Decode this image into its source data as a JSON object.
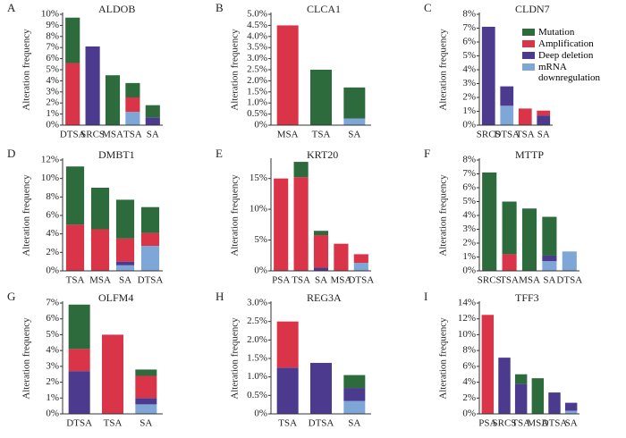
{
  "legend": {
    "names": [
      "Mutation",
      "Amplification",
      "Deep deletion",
      "mRNA downregulation"
    ],
    "colors": [
      "#2e6b3c",
      "#d93448",
      "#4b3a8e",
      "#7ea7d8"
    ]
  },
  "chart_data": [
    {
      "type": "bar",
      "label": "A",
      "title": "ALDOB",
      "y_label": "Alteration frequency",
      "categories": [
        "DTSA",
        "SRCS",
        "MSA",
        "TSA",
        "SA"
      ],
      "series": [
        {
          "values": [
            4.1,
            0,
            4.5,
            1.3,
            1.1
          ]
        },
        {
          "values": [
            5.6,
            0,
            0,
            1.3,
            0
          ]
        },
        {
          "values": [
            0,
            7.1,
            0,
            0,
            0.7
          ]
        },
        {
          "values": [
            0,
            0,
            0,
            1.2,
            0
          ]
        }
      ],
      "ylim": [
        0,
        10
      ],
      "yticks": [
        {
          "value": 0,
          "label": "0%"
        },
        {
          "value": 1,
          "label": "1%"
        },
        {
          "value": 2,
          "label": "2%"
        },
        {
          "value": 3,
          "label": "3%"
        },
        {
          "value": 4,
          "label": "4%"
        },
        {
          "value": 5,
          "label": "5%"
        },
        {
          "value": 6,
          "label": "6%"
        },
        {
          "value": 7,
          "label": "7%"
        },
        {
          "value": 8,
          "label": "8%"
        },
        {
          "value": 9,
          "label": "9%"
        },
        {
          "value": 10,
          "label": "10%"
        }
      ]
    },
    {
      "type": "bar",
      "label": "B",
      "title": "CLCA1",
      "y_label": "Alteration frequency",
      "categories": [
        "MSA",
        "TSA",
        "SA"
      ],
      "series": [
        {
          "values": [
            0,
            2.5,
            1.4
          ]
        },
        {
          "values": [
            4.5,
            0,
            0
          ]
        },
        {
          "values": [
            0,
            0,
            0
          ]
        },
        {
          "values": [
            0,
            0,
            0.3
          ]
        }
      ],
      "ylim": [
        0,
        5
      ],
      "yticks": [
        {
          "value": 0,
          "label": "0%"
        },
        {
          "value": 0.5,
          "label": "0.5%"
        },
        {
          "value": 1,
          "label": "1.0%"
        },
        {
          "value": 1.5,
          "label": "1.5%"
        },
        {
          "value": 2,
          "label": "2.0%"
        },
        {
          "value": 2.5,
          "label": "2.5%"
        },
        {
          "value": 3,
          "label": "3.0%"
        },
        {
          "value": 3.5,
          "label": "3.5%"
        },
        {
          "value": 4,
          "label": "4.0%"
        },
        {
          "value": 4.5,
          "label": "4.5%"
        },
        {
          "value": 5,
          "label": "5.0%"
        }
      ]
    },
    {
      "type": "bar",
      "label": "C",
      "title": "CLDN7",
      "y_label": "Alteration frequency",
      "categories": [
        "SRCS",
        "DTSA",
        "TSA",
        "SA"
      ],
      "series": [
        {
          "values": [
            0,
            0,
            0,
            0
          ]
        },
        {
          "values": [
            0,
            0,
            1.2,
            0.35
          ]
        },
        {
          "values": [
            7.1,
            1.4,
            0,
            0.7
          ]
        },
        {
          "values": [
            0,
            1.4,
            0,
            0
          ]
        }
      ],
      "ylim": [
        0,
        8
      ],
      "yticks": [
        {
          "value": 0,
          "label": "0%"
        },
        {
          "value": 1,
          "label": "1%"
        },
        {
          "value": 2,
          "label": "2%"
        },
        {
          "value": 3,
          "label": "3%"
        },
        {
          "value": 4,
          "label": "4%"
        },
        {
          "value": 5,
          "label": "5%"
        },
        {
          "value": 6,
          "label": "6%"
        },
        {
          "value": 7,
          "label": "7%"
        },
        {
          "value": 8,
          "label": "8%"
        }
      ]
    },
    {
      "type": "bar",
      "label": "D",
      "title": "DMBT1",
      "y_label": "Alteration frequency",
      "categories": [
        "TSA",
        "MSA",
        "SA",
        "DTSA"
      ],
      "series": [
        {
          "values": [
            6.3,
            4.5,
            4.2,
            2.8
          ]
        },
        {
          "values": [
            5.0,
            4.5,
            2.5,
            1.4
          ]
        },
        {
          "values": [
            0,
            0,
            0.4,
            0
          ]
        },
        {
          "values": [
            0,
            0,
            0.6,
            2.7
          ]
        }
      ],
      "ylim": [
        0,
        12
      ],
      "yticks": [
        {
          "value": 0,
          "label": "0%"
        },
        {
          "value": 2,
          "label": "2%"
        },
        {
          "value": 4,
          "label": "4%"
        },
        {
          "value": 6,
          "label": "6%"
        },
        {
          "value": 8,
          "label": "8%"
        },
        {
          "value": 10,
          "label": "10%"
        },
        {
          "value": 12,
          "label": "12%"
        }
      ]
    },
    {
      "type": "bar",
      "label": "E",
      "title": "KRT20",
      "y_label": "Alteration frequency",
      "categories": [
        "PSA",
        "TSA",
        "SA",
        "MSA",
        "DTSA"
      ],
      "series": [
        {
          "values": [
            0,
            2.5,
            0.7,
            0,
            0
          ]
        },
        {
          "values": [
            15,
            15.2,
            5.3,
            4.4,
            1.4
          ]
        },
        {
          "values": [
            0,
            0,
            0.5,
            0,
            0
          ]
        },
        {
          "values": [
            0,
            0,
            0,
            0,
            1.3
          ]
        }
      ],
      "ylim": [
        0,
        18
      ],
      "yticks": [
        {
          "value": 0,
          "label": "0%"
        },
        {
          "value": 5,
          "label": "5%"
        },
        {
          "value": 10,
          "label": "10%"
        },
        {
          "value": 15,
          "label": "15%"
        }
      ]
    },
    {
      "type": "bar",
      "label": "F",
      "title": "MTTP",
      "y_label": "Alteration frequency",
      "categories": [
        "SRCS",
        "TSA",
        "MSA",
        "SA",
        "DTSA"
      ],
      "series": [
        {
          "values": [
            7.1,
            3.8,
            4.5,
            2.8,
            0
          ]
        },
        {
          "values": [
            0,
            1.2,
            0,
            0,
            0
          ]
        },
        {
          "values": [
            0,
            0,
            0,
            0.4,
            0
          ]
        },
        {
          "values": [
            0,
            0,
            0,
            0.7,
            1.4
          ]
        }
      ],
      "ylim": [
        0,
        8
      ],
      "yticks": [
        {
          "value": 0,
          "label": "0%"
        },
        {
          "value": 1,
          "label": "1%"
        },
        {
          "value": 2,
          "label": "2%"
        },
        {
          "value": 3,
          "label": "3%"
        },
        {
          "value": 4,
          "label": "4%"
        },
        {
          "value": 5,
          "label": "5%"
        },
        {
          "value": 6,
          "label": "6%"
        },
        {
          "value": 7,
          "label": "7%"
        },
        {
          "value": 8,
          "label": "8%"
        }
      ]
    },
    {
      "type": "bar",
      "label": "G",
      "title": "OLFM4",
      "y_label": "Alteration frequency",
      "categories": [
        "DTSA",
        "TSA",
        "SA"
      ],
      "series": [
        {
          "values": [
            2.8,
            0,
            0.4
          ]
        },
        {
          "values": [
            1.4,
            5.0,
            1.4
          ]
        },
        {
          "values": [
            2.7,
            0,
            0.4
          ]
        },
        {
          "values": [
            0,
            0,
            0.6
          ]
        }
      ],
      "ylim": [
        0,
        7
      ],
      "yticks": [
        {
          "value": 0,
          "label": "0%"
        },
        {
          "value": 1,
          "label": "1%"
        },
        {
          "value": 2,
          "label": "2%"
        },
        {
          "value": 3,
          "label": "3%"
        },
        {
          "value": 4,
          "label": "4%"
        },
        {
          "value": 5,
          "label": "5%"
        },
        {
          "value": 6,
          "label": "6%"
        },
        {
          "value": 7,
          "label": "7%"
        }
      ]
    },
    {
      "type": "bar",
      "label": "H",
      "title": "REG3A",
      "y_label": "Alteration frequency",
      "categories": [
        "TSA",
        "DTSA",
        "SA"
      ],
      "series": [
        {
          "values": [
            0,
            0,
            0.35
          ]
        },
        {
          "values": [
            1.25,
            0,
            0
          ]
        },
        {
          "values": [
            1.25,
            1.38,
            0.35
          ]
        },
        {
          "values": [
            0,
            0,
            0.35
          ]
        }
      ],
      "ylim": [
        0,
        3
      ],
      "yticks": [
        {
          "value": 0,
          "label": "0%"
        },
        {
          "value": 0.5,
          "label": "0.5%"
        },
        {
          "value": 1,
          "label": "1.0%"
        },
        {
          "value": 1.5,
          "label": "1.5%"
        },
        {
          "value": 2,
          "label": "2.0%"
        },
        {
          "value": 2.5,
          "label": "2.5%"
        },
        {
          "value": 3,
          "label": "3.0%"
        }
      ]
    },
    {
      "type": "bar",
      "label": "I",
      "title": "TFF3",
      "y_label": "Alteration frequency",
      "categories": [
        "PSA",
        "SRCS",
        "TSA",
        "MSA",
        "DTSA",
        "SA"
      ],
      "series": [
        {
          "values": [
            0,
            0,
            1.2,
            4.5,
            0,
            0
          ]
        },
        {
          "values": [
            12.5,
            0,
            0,
            0,
            0,
            0
          ]
        },
        {
          "values": [
            0,
            7.1,
            3.8,
            0,
            2.7,
            1.0
          ]
        },
        {
          "values": [
            0,
            0,
            0,
            0,
            0,
            0.4
          ]
        }
      ],
      "ylim": [
        0,
        14
      ],
      "yticks": [
        {
          "value": 0,
          "label": "0%"
        },
        {
          "value": 2,
          "label": "2%"
        },
        {
          "value": 4,
          "label": "4%"
        },
        {
          "value": 6,
          "label": "6%"
        },
        {
          "value": 8,
          "label": "8%"
        },
        {
          "value": 10,
          "label": "10%"
        },
        {
          "value": 12,
          "label": "12%"
        },
        {
          "value": 14,
          "label": "14%"
        }
      ]
    }
  ]
}
